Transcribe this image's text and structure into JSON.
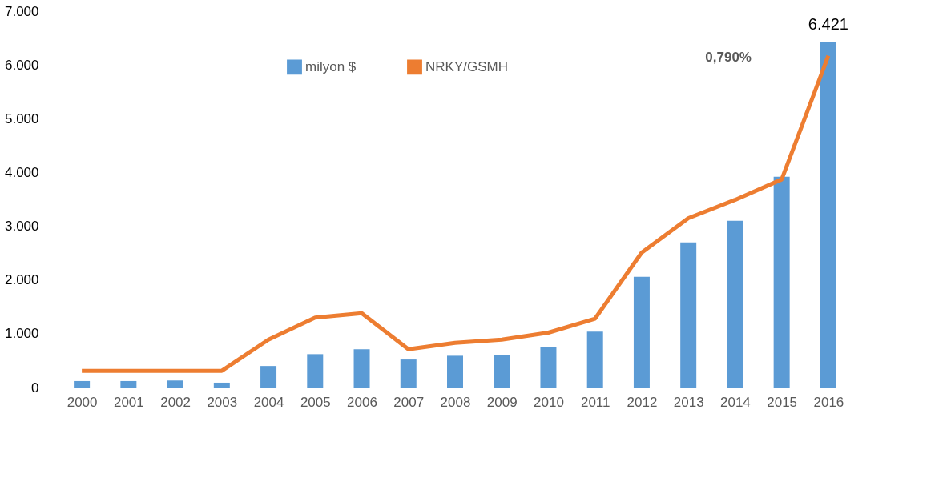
{
  "chart_data": {
    "type": "bar",
    "categories": [
      "2000",
      "2001",
      "2002",
      "2003",
      "2004",
      "2005",
      "2006",
      "2007",
      "2008",
      "2009",
      "2010",
      "2011",
      "2012",
      "2013",
      "2014",
      "2015",
      "2016"
    ],
    "series": [
      {
        "name": "milyon $",
        "color": "#5b9bd5",
        "values": [
          120,
          120,
          130,
          90,
          400,
          620,
          710,
          520,
          590,
          610,
          760,
          1040,
          2060,
          2700,
          3100,
          3920,
          6421
        ],
        "value_labels": [
          null,
          null,
          null,
          null,
          null,
          null,
          null,
          null,
          null,
          null,
          null,
          null,
          null,
          null,
          null,
          null,
          "6.421"
        ]
      },
      {
        "name": "NRKY/GSMH",
        "type": "line",
        "color": "#ed7d31",
        "values": [
          310,
          310,
          310,
          310,
          890,
          1300,
          1380,
          710,
          830,
          890,
          1020,
          1280,
          2510,
          3150,
          3490,
          3870,
          6170
        ]
      }
    ],
    "ylim": [
      0,
      7000
    ],
    "yticks": [
      0,
      {
        "value": 1000,
        "label": "1.000"
      },
      {
        "value": 2000,
        "label": "2.000"
      },
      {
        "value": 3000,
        "label": "3.000"
      },
      {
        "value": 4000,
        "label": "4.000"
      },
      {
        "value": 5000,
        "label": "5.000"
      },
      {
        "value": 6000,
        "label": "6.000"
      },
      {
        "value": 7000,
        "label": "7.000"
      }
    ],
    "annotations": [
      "0,790%"
    ],
    "grid": false,
    "legend": "top",
    "marker": "none",
    "line_style": "solid"
  }
}
